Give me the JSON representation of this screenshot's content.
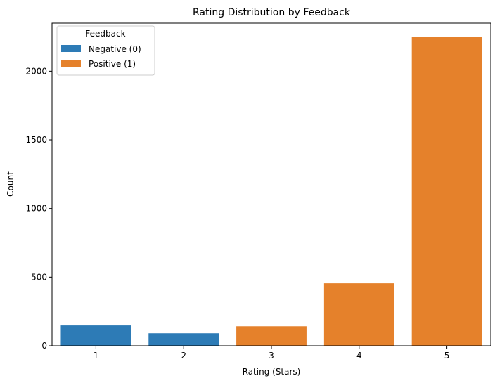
{
  "chart_data": {
    "type": "bar",
    "title": "Rating Distribution by Feedback",
    "xlabel": "Rating (Stars)",
    "ylabel": "Count",
    "categories": [
      "1",
      "2",
      "3",
      "4",
      "5"
    ],
    "ylim": [
      0,
      2350
    ],
    "yticks": [
      0,
      500,
      1000,
      1500,
      2000
    ],
    "grid": false,
    "legend": {
      "title": "Feedback",
      "placement": "top-left",
      "entries": [
        {
          "label": "Negative (0)",
          "color": "#2d7bb6"
        },
        {
          "label": "Positive (1)",
          "color": "#e5812b"
        }
      ]
    },
    "series": [
      {
        "name": "Negative (0)",
        "color": "#2d7bb6",
        "values": [
          148,
          91,
          null,
          null,
          null
        ]
      },
      {
        "name": "Positive (1)",
        "color": "#e5812b",
        "values": [
          null,
          null,
          142,
          455,
          2250
        ]
      }
    ]
  }
}
